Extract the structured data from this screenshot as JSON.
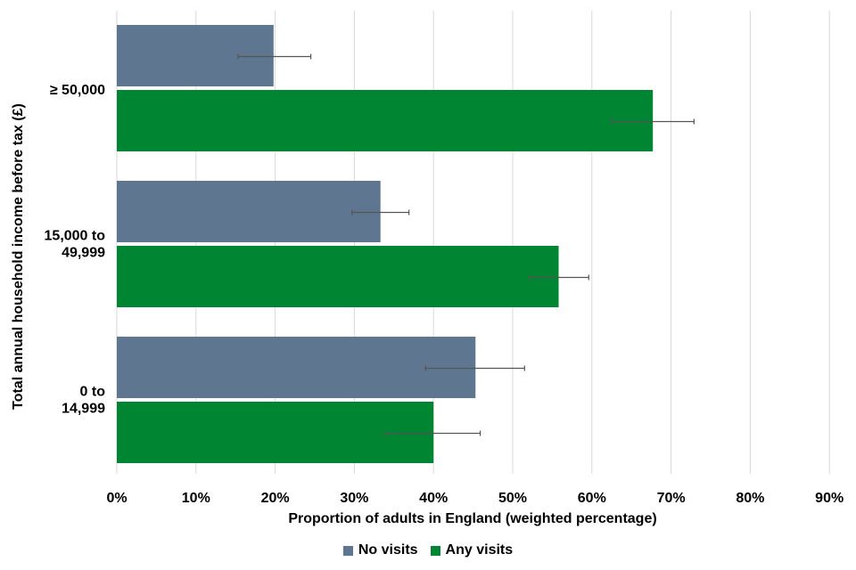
{
  "chart_data": {
    "type": "bar",
    "orientation": "horizontal",
    "xlabel": "Proportion of adults in England (weighted percentage)",
    "ylabel": "Total annual household income before tax (£)",
    "xlim": [
      0,
      90
    ],
    "xticks": [
      "0%",
      "10%",
      "20%",
      "30%",
      "40%",
      "50%",
      "60%",
      "70%",
      "80%",
      "90%"
    ],
    "categories": [
      [
        "≥ 50,000"
      ],
      [
        "15,000 to",
        "49,999"
      ],
      [
        "0 to",
        "14,999"
      ]
    ],
    "series": [
      {
        "name": "No visits",
        "color": "#5e7690",
        "values": [
          19.8,
          33.3,
          45.3
        ],
        "error_low": [
          15.3,
          29.7,
          39.0
        ],
        "error_high": [
          24.5,
          36.9,
          51.5
        ]
      },
      {
        "name": "Any visits",
        "color": "#008533",
        "values": [
          67.7,
          55.8,
          40.0
        ],
        "error_low": [
          62.5,
          52.1,
          33.9
        ],
        "error_high": [
          72.9,
          59.6,
          45.9
        ]
      }
    ],
    "grid": "vertical",
    "legend_position": "bottom"
  }
}
